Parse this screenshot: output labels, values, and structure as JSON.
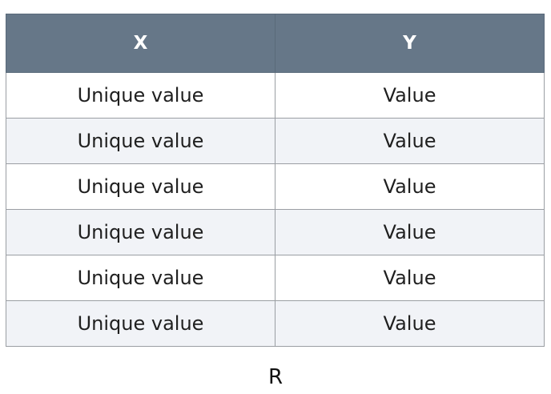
{
  "table": {
    "columns": [
      "X",
      "Y"
    ],
    "rows": [
      [
        "Unique value",
        "Value"
      ],
      [
        "Unique value",
        "Value"
      ],
      [
        "Unique value",
        "Value"
      ],
      [
        "Unique value",
        "Value"
      ],
      [
        "Unique value",
        "Value"
      ],
      [
        "Unique value",
        "Value"
      ]
    ]
  },
  "caption": "R",
  "colors": {
    "header_background": "#667788",
    "header_text": "#ffffff",
    "row_alt_background": "#f1f3f7",
    "grid_line": "#9a9ea3"
  }
}
